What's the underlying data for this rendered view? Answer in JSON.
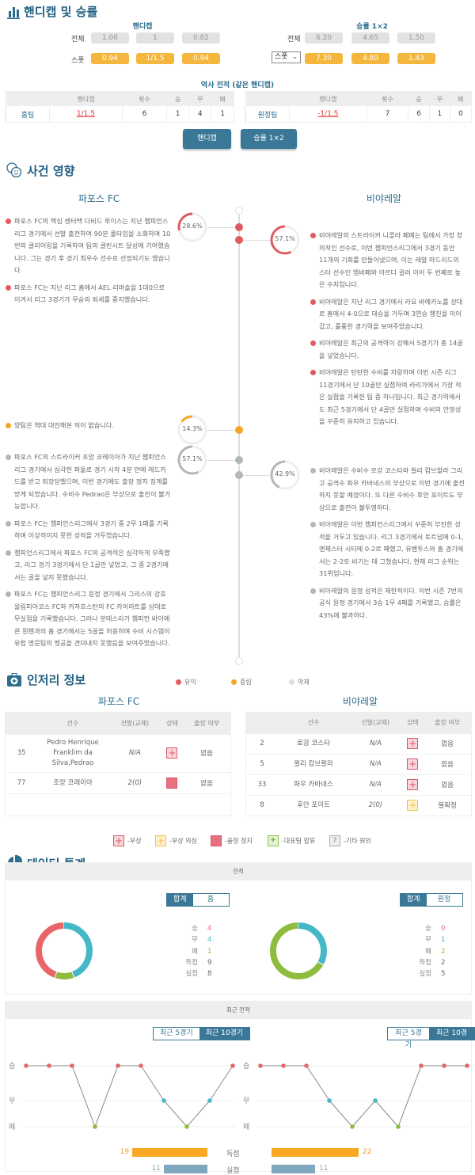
{
  "handicap_section": {
    "title": "핸디캡 및 승률",
    "handicap": {
      "label": "핸디캡",
      "rows": [
        {
          "label": "전체",
          "values": [
            "1.06",
            "1",
            "0.82"
          ]
        },
        {
          "label": "스폿",
          "values": [
            "0.94",
            "1/1.5",
            "0.94"
          ]
        }
      ]
    },
    "win_rate": {
      "label": "승률 1×2",
      "rows": [
        {
          "label": "전체",
          "values": [
            "6.20",
            "4.65",
            "1.50"
          ]
        },
        {
          "label": "스폿",
          "values": [
            "7.30",
            "4.80",
            "1.43"
          ],
          "select": true
        }
      ]
    },
    "history_title": "역사 전적  (같은 핸디캡)",
    "history_headers": [
      "",
      "핸디캡",
      "횟수",
      "승",
      "무",
      "패"
    ],
    "history_home": [
      "홈팀",
      "1/1.5",
      "6",
      "1",
      "4",
      "1"
    ],
    "history_away": [
      "원정팀",
      "-1/1.5",
      "7",
      "6",
      "1",
      "0"
    ],
    "buttons": [
      "핸디캡",
      "승률 1×2"
    ]
  },
  "events_section": {
    "title": "사건 영향",
    "home_team": "파포스 FC",
    "away_team": "비야레알",
    "colors": {
      "positive": "#e05a5f",
      "neutral": "#f5a623",
      "negative": "#b0b8b8"
    },
    "groups": [
      {
        "type": "positive",
        "home_pct": "28.6%",
        "home_value": 28.6,
        "away_pct": "57.1%",
        "away_value": 57.1,
        "home_items": [
          "파포스 FC의 핵심 센터백 다비드 루이스는 지난 챔피언스리그 경기에서 선발 출전하여 90분 풀타임을 소화하며 10번의 클리어링을 기록하여 팀의 클린시트 달성에 기여했습니다. 그는 경기 후 경기 최우수 선수로 선정되기도 했습니다.",
          "파포스 FC는 지난 리그 홈에서 AEL 리마솔을 1대0으로 이겨서 리그 3경기가 무승의 퇴세를 중지했습니다."
        ],
        "away_items": [
          "비야레알의 스트라이커 니콜라 페페는 팀에서 가장 창의적인 선수로, 이번 챔피언스리그에서 3경기 동안 11개의 기회를 만들어냈으며, 이는 레알 마드리드의 스타 선수인 엠바페와 아르다 귈러 이어 두 번째로 높은 수치입니다.",
          "비야레알은 지난 리그 경기에서 라요 바예카노를 상대로 홈에서 4-0으로 대승을 거두며 3연승 행진을 이어갔고, 훌륭한 경기력을 보여주었습니다.",
          "비야레알은 최근의 공격력이 강해서 5경기가 총 14골을 넣었습니다.",
          "비야레알은 탄탄한 수비를 자랑하며 이번 시즌 리그 11경기에서 단 10골만 실점하며 라리가에서 가장 적은 실점을 기록한 팀 중 하나입니다. 최근 경기력에서도 최근 5경기에서 단 4골만 실점하며 수비의 안정성을 꾸준히 유지하고 있습니다."
        ]
      },
      {
        "type": "neutral",
        "home_pct": "14.3%",
        "home_value": 14.3,
        "home_items": [
          "양팀은 역대 대진해본 적이 없습니다."
        ],
        "away_items": []
      },
      {
        "type": "negative",
        "home_pct": "57.1%",
        "home_value": 57.1,
        "away_pct": "42.9%",
        "away_value": 42.9,
        "home_items": [
          "파포스 FC의 스트라이커 조앙 코레이아가 지난 챔피언스리그 경기에서 심각한 파울로 경기 시작 4분 만에 레드카드를 받고 퇴장당했으며, 이번 경기에도 출장 정지 징계를 받게 되었습니다. 수비수 Pedrao은 부상으로 출전이 불가능합니다.",
          "파포스 FC는 챔피언스리그에서 3경기 중 2무 1패를 기록하며 이상적이지 못한 성적을 거두었습니다.",
          "챔피언스리그에서 파포스 FC의 공격력은 심각하게 부족했고, 리그 경기 3경기에서 단 1골만 넣었고, 그 중 2경기에서는 골을 넣지 못했습니다.",
          "파포스 FC는 챔피언스리그 원정 경기에서 그리스의 강호 올림피아코스 FC와 카자흐스탄의 FC 카이라트를 상대로 무실점을 기록했습니다. 그러나 분데스리가 챔피언 바이에른 뮌헨과의 홈 경기에서는 5골을 허용하며 수비 시스템이 유럽 명문팀의 맹공을 견뎌내지 못했음을 보여주었습니다."
        ],
        "away_items": [
          "비아레알은 수비수 로강 코스타와 윌리 캄브왈라 그리고 공격수 파우 카바네스의 부상으로 이번 경기에 출전하지 못할 예정이다. 또 다른 수비수 후안 포이트도 부상으로 출전이 불투명하다.",
          "비아레알은 이번 챔피언스리그에서 꾸준히 부진한 성적을 거두고 있습니다. 리그 3경기에서 토트넘에 0-1, 맨체스터 시티에 0-2로 패했고, 유벤투스와 홈 경기에서는 2-2로 비기는 데 그쳤습니다. 현재 리그 순위는 31위입니다.",
          "비아레알의 원정 성적은 제한적이다. 이번 시즌 7번의 공식 원정 경기에서 3승 1무 4패를 기록했고, 승률은 43%에 불과하다."
        ]
      }
    ],
    "legend": [
      "유익",
      "중립",
      "악재"
    ]
  },
  "injury_section": {
    "title": "인저리 정보",
    "headers": [
      "선수",
      "선발(교체)",
      "상태",
      "출장 여부"
    ],
    "home_team": "파포스 FC",
    "away_team": "비야레알",
    "home_rows": [
      {
        "num": "35",
        "name": "Pedro Henrique Franklim da Silva,Pedrao",
        "starts": "N/A",
        "status": "inj",
        "play": "없음"
      },
      {
        "num": "77",
        "name": "조앙 코레이아",
        "starts": "2(0)",
        "status": "sus",
        "play": "없음"
      }
    ],
    "away_rows": [
      {
        "num": "2",
        "name": "로강 코스타",
        "starts": "N/A",
        "status": "inj",
        "play": "없음"
      },
      {
        "num": "5",
        "name": "윌리 캄브왈라",
        "starts": "N/A",
        "status": "inj",
        "play": "없음"
      },
      {
        "num": "33",
        "name": "파우 카바네스",
        "starts": "N/A",
        "status": "inj",
        "play": "없음"
      },
      {
        "num": "8",
        "name": "후안 포이트",
        "starts": "2(0)",
        "status": "doubt",
        "play": "불확정"
      }
    ],
    "legend": [
      "-부상",
      "-부상 의심",
      "-출장 정지",
      "-대표팀 합류",
      "-기타 원인"
    ]
  },
  "stats_section": {
    "title": "데이터 통계",
    "record_header": "전적",
    "home_toggle": [
      "합계",
      "홈"
    ],
    "away_toggle": [
      "합계",
      "원정"
    ],
    "stat_labels": [
      "승",
      "무",
      "패",
      "득점",
      "실점"
    ],
    "home_stats": [
      "4",
      "4",
      "1",
      "9",
      "8"
    ],
    "away_stats": [
      "0",
      "1",
      "2",
      "2",
      "5"
    ],
    "colors": {
      "win": "#e8656a",
      "draw": "#45b8c8",
      "loss": "#8fbc3f",
      "goals": "#f9a825",
      "conceded": "#7fa7bd"
    },
    "recent_header": "최근 전적",
    "recent_toggle": [
      "최근 5경기",
      "최근 10경기"
    ],
    "result_labels": [
      "승",
      "무",
      "패"
    ],
    "home_recent": [
      "W",
      "W",
      "W",
      "L",
      "W",
      "W",
      "D",
      "L",
      "D",
      "W"
    ],
    "away_recent": [
      "W",
      "W",
      "W",
      "D",
      "L",
      "D",
      "L",
      "W",
      "W",
      "W"
    ],
    "bar_labels": [
      "득점",
      "실점"
    ],
    "home_goals": 19,
    "home_conceded": 11,
    "away_goals": 22,
    "away_conceded": 11
  }
}
